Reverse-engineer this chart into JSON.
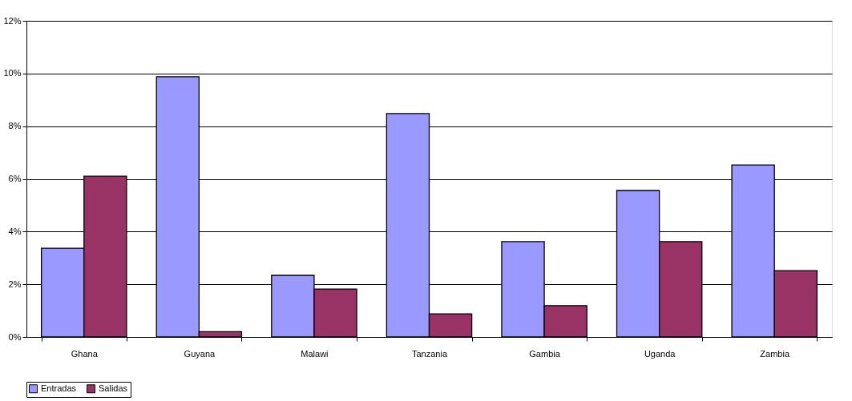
{
  "chart_data": {
    "type": "bar",
    "categories": [
      "Ghana",
      "Guyana",
      "Malawi",
      "Tanzania",
      "Gambia",
      "Uganda",
      "Zambia"
    ],
    "series": [
      {
        "name": "Entradas",
        "color": "#9999ff",
        "values": [
          3.37,
          9.88,
          2.34,
          8.48,
          3.62,
          5.56,
          6.53
        ]
      },
      {
        "name": "Salidas",
        "color": "#993366",
        "values": [
          6.1,
          0.2,
          1.82,
          0.88,
          1.19,
          3.62,
          2.52
        ]
      }
    ],
    "ylim": [
      0,
      12
    ],
    "yticks": [
      {
        "value": 0,
        "label": "0%"
      },
      {
        "value": 2,
        "label": "2%"
      },
      {
        "value": 4,
        "label": "4%"
      },
      {
        "value": 6,
        "label": "6%"
      },
      {
        "value": 8,
        "label": "8%"
      },
      {
        "value": 10,
        "label": "10%"
      },
      {
        "value": 12,
        "label": "12%"
      }
    ],
    "grid": "y",
    "legend": "bottom"
  }
}
